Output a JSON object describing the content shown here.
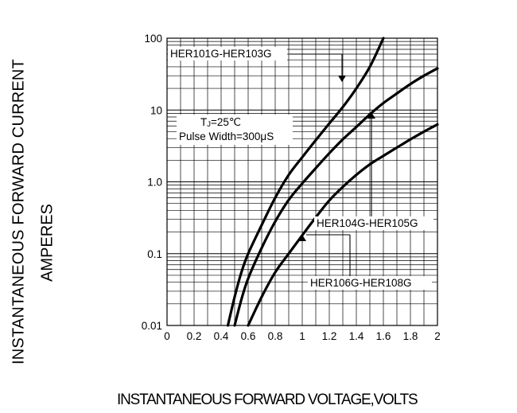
{
  "chart_data": {
    "type": "line",
    "title": "",
    "xlabel": "INSTANTANEOUS FORWARD VOLTAGE,VOLTS",
    "ylabel": [
      "INSTANTANEOUS FORWARD CURRENT",
      "AMPERES"
    ],
    "xlim": [
      0,
      2
    ],
    "ylim": [
      0.01,
      100
    ],
    "y_scale": "log",
    "grid": true,
    "x_ticks": [
      "0",
      "0.2",
      "0.4",
      "0.6",
      "0.8",
      "1",
      "1.2",
      "1.4",
      "1.6",
      "1.8",
      "2"
    ],
    "x_tick_values": [
      0,
      0.2,
      0.4,
      0.6,
      0.8,
      1,
      1.2,
      1.4,
      1.6,
      1.8,
      2
    ],
    "y_ticks": [
      "0.01",
      "0.1",
      "1.0",
      "10",
      "100"
    ],
    "y_tick_values": [
      0.01,
      0.1,
      1,
      10,
      100
    ],
    "series": [
      {
        "name": "HER101G-HER103G",
        "x": [
          0.45,
          0.5,
          0.55,
          0.6,
          0.7,
          0.8,
          0.9,
          1.0,
          1.1,
          1.2,
          1.3,
          1.4,
          1.5,
          1.6
        ],
        "y": [
          0.01,
          0.025,
          0.055,
          0.1,
          0.25,
          0.6,
          1.25,
          2.2,
          3.8,
          6.5,
          11,
          20,
          40,
          100
        ]
      },
      {
        "name": "HER104G-HER105G",
        "x": [
          0.5,
          0.55,
          0.6,
          0.7,
          0.8,
          0.9,
          1.0,
          1.1,
          1.2,
          1.3,
          1.4,
          1.5,
          1.6,
          1.7,
          1.8,
          1.9,
          2.0
        ],
        "y": [
          0.01,
          0.023,
          0.045,
          0.12,
          0.28,
          0.56,
          0.95,
          1.55,
          2.5,
          3.9,
          5.8,
          8.7,
          12.5,
          17,
          23,
          30,
          38
        ]
      },
      {
        "name": "HER106G-HER108G",
        "x": [
          0.6,
          0.7,
          0.8,
          0.9,
          1.0,
          1.1,
          1.2,
          1.3,
          1.4,
          1.5,
          1.6,
          1.7,
          1.8,
          1.9,
          2.0
        ],
        "y": [
          0.01,
          0.025,
          0.055,
          0.1,
          0.18,
          0.32,
          0.55,
          0.85,
          1.25,
          1.75,
          2.3,
          3.0,
          3.9,
          5.0,
          6.3
        ]
      }
    ],
    "annotations": {
      "conditions_line1_main": "T",
      "conditions_line1_sub": "J",
      "conditions_line1_rest": "=25℃",
      "conditions_line2": "Pulse Width=300μS"
    }
  }
}
